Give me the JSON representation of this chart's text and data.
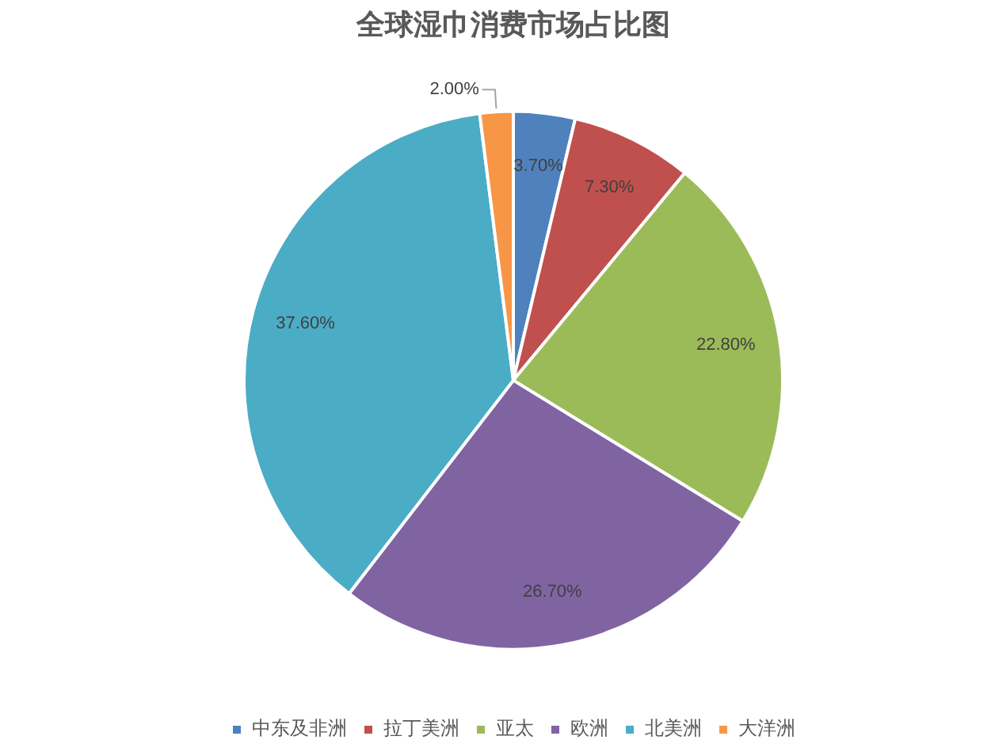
{
  "chart_data": {
    "type": "pie",
    "title": "全球湿巾消费市场占比图",
    "categories": [
      "中东及非洲",
      "拉丁美洲",
      "亚太",
      "欧洲",
      "北美洲",
      "大洋洲"
    ],
    "values": [
      3.7,
      7.3,
      22.8,
      26.7,
      37.6,
      2.0
    ],
    "colors": [
      "#4f81bd",
      "#c0504d",
      "#9bbb59",
      "#8064a2",
      "#4bacc6",
      "#f79646"
    ],
    "value_labels": [
      "3.70%",
      "7.30%",
      "22.80%",
      "26.70%",
      "37.60%",
      "2.00%"
    ],
    "legend": "bottom"
  }
}
